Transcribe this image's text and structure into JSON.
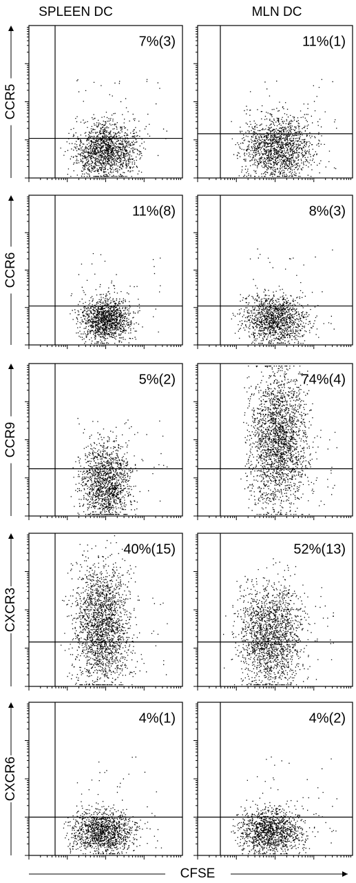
{
  "column_titles": [
    "SPLEEN DC",
    "MLN DC"
  ],
  "row_labels": [
    "CCR5",
    "CCR6",
    "CCR9",
    "CXCR3",
    "CXCR6"
  ],
  "panels": [
    [
      "7%(3)",
      "11%(1)"
    ],
    [
      "11%(8)",
      "8%(3)"
    ],
    [
      "5%(2)",
      "74%(4)"
    ],
    [
      "40%(15)",
      "52%(13)"
    ],
    [
      "4%(1)",
      "4%(2)"
    ]
  ],
  "x_axis_label": "CFSE"
}
